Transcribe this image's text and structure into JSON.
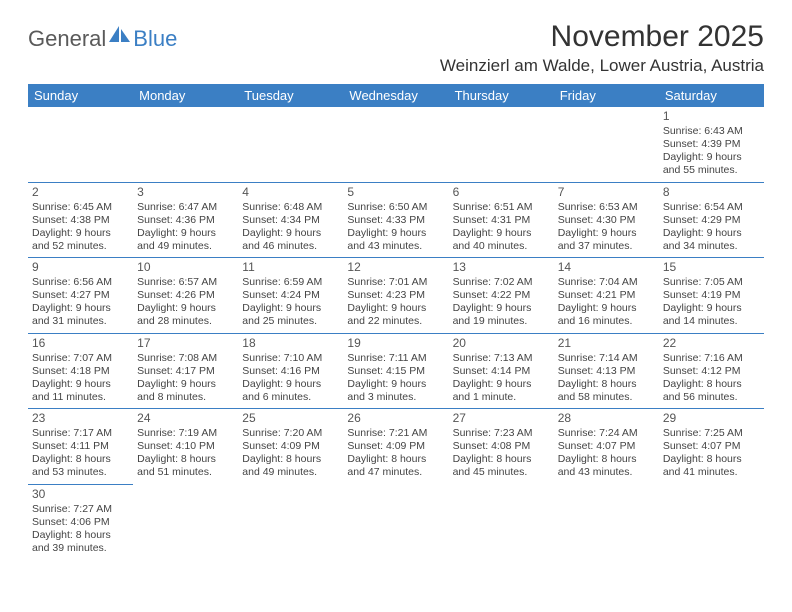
{
  "logo": {
    "text1": "General",
    "text2": "Blue"
  },
  "title": "November 2025",
  "location": "Weinzierl am Walde, Lower Austria, Austria",
  "colors": {
    "header_bg": "#3b7fc4",
    "header_text": "#ffffff",
    "cell_border": "#3b7fc4",
    "body_text": "#444444",
    "logo_gray": "#5a5a5a",
    "logo_blue": "#3b7fc4",
    "background": "#ffffff"
  },
  "day_headers": [
    "Sunday",
    "Monday",
    "Tuesday",
    "Wednesday",
    "Thursday",
    "Friday",
    "Saturday"
  ],
  "weeks": [
    [
      null,
      null,
      null,
      null,
      null,
      null,
      {
        "n": "1",
        "sr": "Sunrise: 6:43 AM",
        "ss": "Sunset: 4:39 PM",
        "d1": "Daylight: 9 hours",
        "d2": "and 55 minutes."
      }
    ],
    [
      {
        "n": "2",
        "sr": "Sunrise: 6:45 AM",
        "ss": "Sunset: 4:38 PM",
        "d1": "Daylight: 9 hours",
        "d2": "and 52 minutes."
      },
      {
        "n": "3",
        "sr": "Sunrise: 6:47 AM",
        "ss": "Sunset: 4:36 PM",
        "d1": "Daylight: 9 hours",
        "d2": "and 49 minutes."
      },
      {
        "n": "4",
        "sr": "Sunrise: 6:48 AM",
        "ss": "Sunset: 4:34 PM",
        "d1": "Daylight: 9 hours",
        "d2": "and 46 minutes."
      },
      {
        "n": "5",
        "sr": "Sunrise: 6:50 AM",
        "ss": "Sunset: 4:33 PM",
        "d1": "Daylight: 9 hours",
        "d2": "and 43 minutes."
      },
      {
        "n": "6",
        "sr": "Sunrise: 6:51 AM",
        "ss": "Sunset: 4:31 PM",
        "d1": "Daylight: 9 hours",
        "d2": "and 40 minutes."
      },
      {
        "n": "7",
        "sr": "Sunrise: 6:53 AM",
        "ss": "Sunset: 4:30 PM",
        "d1": "Daylight: 9 hours",
        "d2": "and 37 minutes."
      },
      {
        "n": "8",
        "sr": "Sunrise: 6:54 AM",
        "ss": "Sunset: 4:29 PM",
        "d1": "Daylight: 9 hours",
        "d2": "and 34 minutes."
      }
    ],
    [
      {
        "n": "9",
        "sr": "Sunrise: 6:56 AM",
        "ss": "Sunset: 4:27 PM",
        "d1": "Daylight: 9 hours",
        "d2": "and 31 minutes."
      },
      {
        "n": "10",
        "sr": "Sunrise: 6:57 AM",
        "ss": "Sunset: 4:26 PM",
        "d1": "Daylight: 9 hours",
        "d2": "and 28 minutes."
      },
      {
        "n": "11",
        "sr": "Sunrise: 6:59 AM",
        "ss": "Sunset: 4:24 PM",
        "d1": "Daylight: 9 hours",
        "d2": "and 25 minutes."
      },
      {
        "n": "12",
        "sr": "Sunrise: 7:01 AM",
        "ss": "Sunset: 4:23 PM",
        "d1": "Daylight: 9 hours",
        "d2": "and 22 minutes."
      },
      {
        "n": "13",
        "sr": "Sunrise: 7:02 AM",
        "ss": "Sunset: 4:22 PM",
        "d1": "Daylight: 9 hours",
        "d2": "and 19 minutes."
      },
      {
        "n": "14",
        "sr": "Sunrise: 7:04 AM",
        "ss": "Sunset: 4:21 PM",
        "d1": "Daylight: 9 hours",
        "d2": "and 16 minutes."
      },
      {
        "n": "15",
        "sr": "Sunrise: 7:05 AM",
        "ss": "Sunset: 4:19 PM",
        "d1": "Daylight: 9 hours",
        "d2": "and 14 minutes."
      }
    ],
    [
      {
        "n": "16",
        "sr": "Sunrise: 7:07 AM",
        "ss": "Sunset: 4:18 PM",
        "d1": "Daylight: 9 hours",
        "d2": "and 11 minutes."
      },
      {
        "n": "17",
        "sr": "Sunrise: 7:08 AM",
        "ss": "Sunset: 4:17 PM",
        "d1": "Daylight: 9 hours",
        "d2": "and 8 minutes."
      },
      {
        "n": "18",
        "sr": "Sunrise: 7:10 AM",
        "ss": "Sunset: 4:16 PM",
        "d1": "Daylight: 9 hours",
        "d2": "and 6 minutes."
      },
      {
        "n": "19",
        "sr": "Sunrise: 7:11 AM",
        "ss": "Sunset: 4:15 PM",
        "d1": "Daylight: 9 hours",
        "d2": "and 3 minutes."
      },
      {
        "n": "20",
        "sr": "Sunrise: 7:13 AM",
        "ss": "Sunset: 4:14 PM",
        "d1": "Daylight: 9 hours",
        "d2": "and 1 minute."
      },
      {
        "n": "21",
        "sr": "Sunrise: 7:14 AM",
        "ss": "Sunset: 4:13 PM",
        "d1": "Daylight: 8 hours",
        "d2": "and 58 minutes."
      },
      {
        "n": "22",
        "sr": "Sunrise: 7:16 AM",
        "ss": "Sunset: 4:12 PM",
        "d1": "Daylight: 8 hours",
        "d2": "and 56 minutes."
      }
    ],
    [
      {
        "n": "23",
        "sr": "Sunrise: 7:17 AM",
        "ss": "Sunset: 4:11 PM",
        "d1": "Daylight: 8 hours",
        "d2": "and 53 minutes."
      },
      {
        "n": "24",
        "sr": "Sunrise: 7:19 AM",
        "ss": "Sunset: 4:10 PM",
        "d1": "Daylight: 8 hours",
        "d2": "and 51 minutes."
      },
      {
        "n": "25",
        "sr": "Sunrise: 7:20 AM",
        "ss": "Sunset: 4:09 PM",
        "d1": "Daylight: 8 hours",
        "d2": "and 49 minutes."
      },
      {
        "n": "26",
        "sr": "Sunrise: 7:21 AM",
        "ss": "Sunset: 4:09 PM",
        "d1": "Daylight: 8 hours",
        "d2": "and 47 minutes."
      },
      {
        "n": "27",
        "sr": "Sunrise: 7:23 AM",
        "ss": "Sunset: 4:08 PM",
        "d1": "Daylight: 8 hours",
        "d2": "and 45 minutes."
      },
      {
        "n": "28",
        "sr": "Sunrise: 7:24 AM",
        "ss": "Sunset: 4:07 PM",
        "d1": "Daylight: 8 hours",
        "d2": "and 43 minutes."
      },
      {
        "n": "29",
        "sr": "Sunrise: 7:25 AM",
        "ss": "Sunset: 4:07 PM",
        "d1": "Daylight: 8 hours",
        "d2": "and 41 minutes."
      }
    ],
    [
      {
        "n": "30",
        "sr": "Sunrise: 7:27 AM",
        "ss": "Sunset: 4:06 PM",
        "d1": "Daylight: 8 hours",
        "d2": "and 39 minutes."
      },
      null,
      null,
      null,
      null,
      null,
      null
    ]
  ]
}
